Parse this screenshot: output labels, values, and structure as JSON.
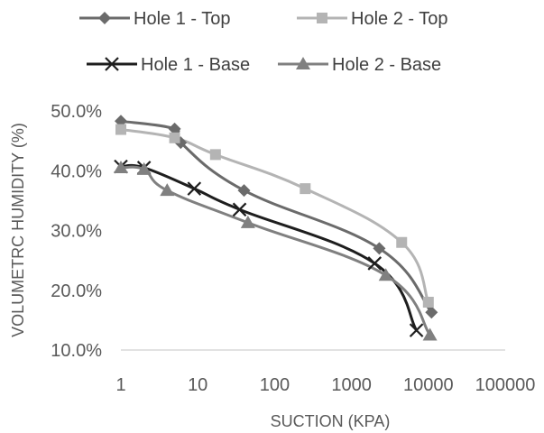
{
  "chart_data": {
    "type": "scatter",
    "title": "",
    "xlabel": "SUCTION (KPA)",
    "ylabel": "VOLUMETRC  HUMIDITY (%)",
    "x_scale": "log",
    "xlim": [
      1,
      100000
    ],
    "ylim": [
      0.1,
      0.5
    ],
    "x_tick_labels": [
      "1",
      "10",
      "100",
      "1000",
      "10000",
      "100000"
    ],
    "y_tick_labels": [
      "10.0%",
      "20.0%",
      "30.0%",
      "40.0%",
      "50.0%"
    ],
    "grid": "none",
    "legend_placement": "top",
    "series": [
      {
        "name": "Hole 1 - Top",
        "color": "#6b6b6b",
        "marker": "diamond",
        "x": [
          1,
          5,
          6,
          40,
          2300,
          11000
        ],
        "y": [
          0.483,
          0.47,
          0.447,
          0.367,
          0.27,
          0.163
        ]
      },
      {
        "name": "Hole 2 - Top",
        "color": "#b4b4b4",
        "marker": "square",
        "x": [
          1,
          5,
          17,
          250,
          4500,
          10000
        ],
        "y": [
          0.469,
          0.455,
          0.427,
          0.37,
          0.28,
          0.18
        ]
      },
      {
        "name": "Hole 1 - Base",
        "color": "#1e1e1e",
        "marker": "x",
        "x": [
          1,
          2,
          9,
          35,
          2000,
          7000
        ],
        "y": [
          0.407,
          0.405,
          0.37,
          0.335,
          0.245,
          0.133
        ]
      },
      {
        "name": "Hole 2 - Base",
        "color": "#808080",
        "marker": "triangle",
        "x": [
          1,
          2,
          4,
          45,
          2800,
          10500
        ],
        "y": [
          0.405,
          0.402,
          0.367,
          0.313,
          0.225,
          0.125
        ]
      }
    ]
  }
}
